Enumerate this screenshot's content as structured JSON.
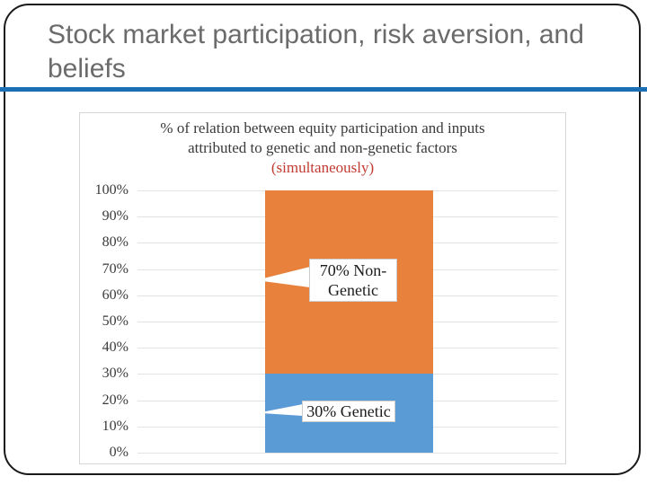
{
  "slide": {
    "title_lines": [
      "Stock market participation, risk aversion, and",
      "beliefs"
    ],
    "title_color": "#6B6B6B",
    "divider_color": "#1B6FB5",
    "border_color": "#1A1A1A"
  },
  "chart_data": {
    "type": "bar",
    "stacked": true,
    "title_lines": [
      "% of relation between equity participation and inputs",
      "attributed to genetic and non-genetic factors"
    ],
    "subtitle": "(simultaneously)",
    "subtitle_color": "#C23B33",
    "categories": [
      ""
    ],
    "series": [
      {
        "name": "Genetic",
        "values": [
          30
        ],
        "color": "#5B9BD5",
        "data_label": "30% Genetic"
      },
      {
        "name": "Non-Genetic",
        "values": [
          70
        ],
        "color": "#E8813C",
        "data_label": "70% Non-Genetic"
      }
    ],
    "ylim": [
      0,
      100
    ],
    "ytick_labels": [
      "100%",
      "90%",
      "80%",
      "70%",
      "60%",
      "50%",
      "40%",
      "30%",
      "20%",
      "10%",
      "0%"
    ],
    "grid": true,
    "legend": "none",
    "text_color": "#3A3A3A",
    "gridline_color": "#E3E3E3",
    "frame_color": "#D6D6D6"
  },
  "callouts": {
    "non_genetic_lines": [
      "70% Non-",
      "Genetic"
    ],
    "genetic": "30% Genetic"
  }
}
